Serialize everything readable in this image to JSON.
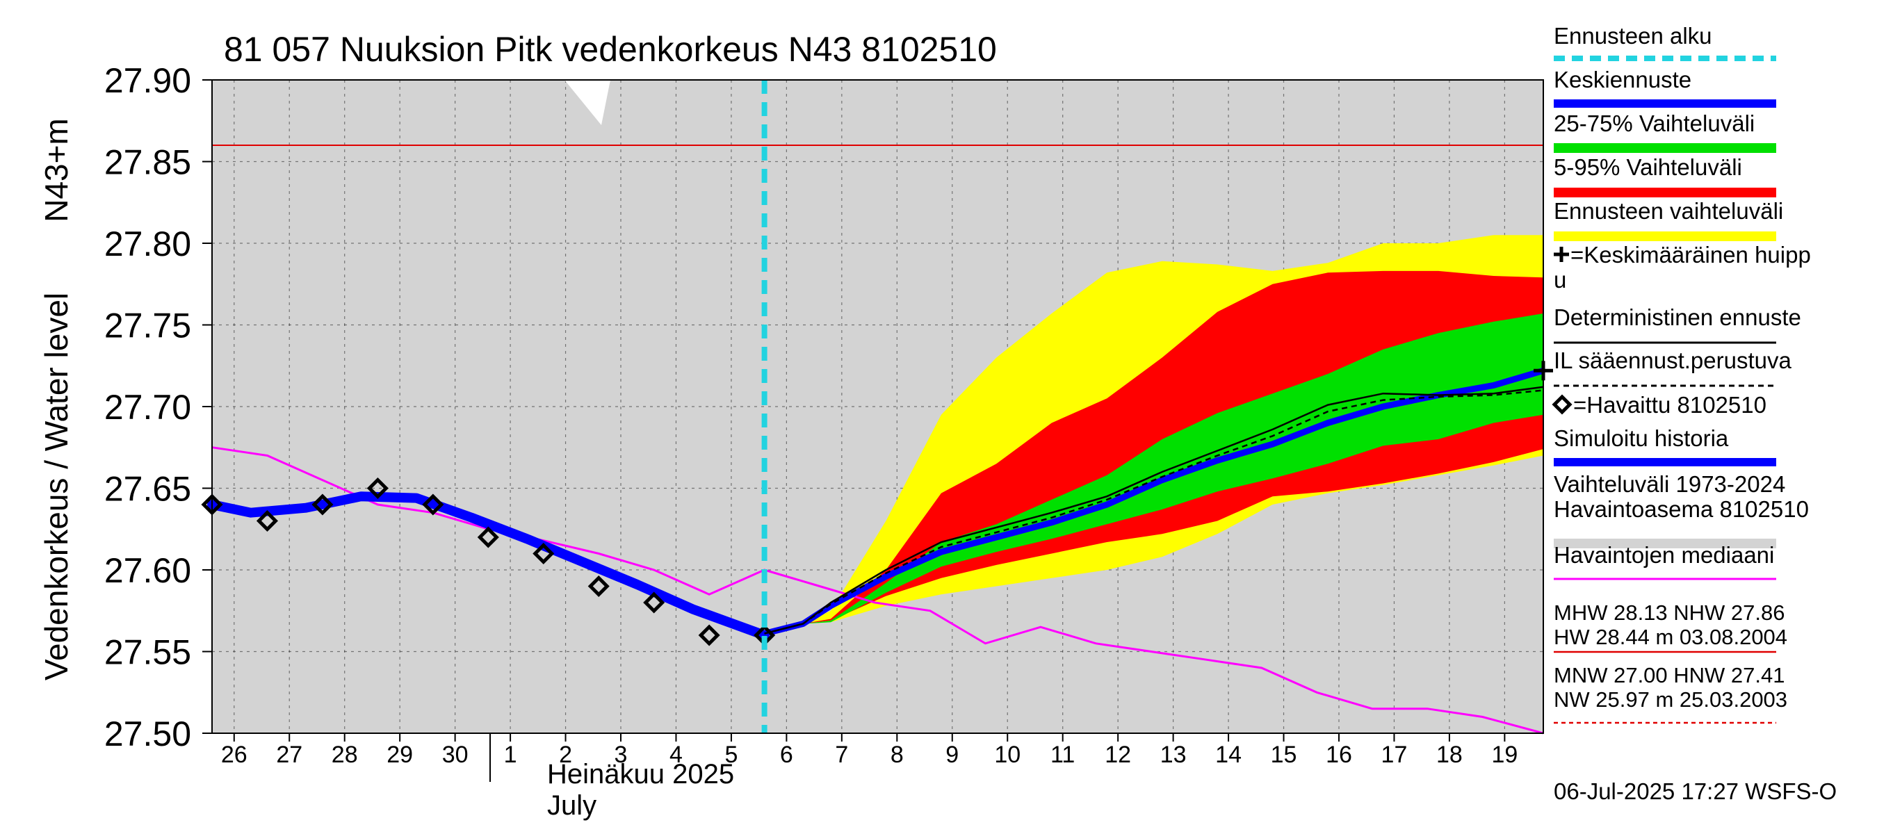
{
  "chart_data": {
    "type": "area",
    "title": "81 057 Nuuksion Pitk vedenkorkeus N43 8102510",
    "ylabel_left": "Vedenkorkeus / Water level",
    "ylabel_right": "N43+m",
    "ylim": [
      27.5,
      27.9
    ],
    "yticks": [
      "27.50",
      "27.55",
      "27.60",
      "27.65",
      "27.70",
      "27.75",
      "27.80",
      "27.85",
      "27.90"
    ],
    "xlim": [
      25.8,
      19.9
    ],
    "x_days": [
      26,
      27,
      28,
      29,
      30,
      1,
      2,
      3,
      4,
      5,
      6,
      7,
      8,
      9,
      10,
      11,
      12,
      13,
      14,
      15,
      16,
      17,
      18,
      19
    ],
    "x_tick_labels": [
      "26",
      "27",
      "28",
      "29",
      "30",
      "1",
      "2",
      "3",
      "4",
      "5",
      "6",
      "7",
      "8",
      "9",
      "10",
      "11",
      "12",
      "13",
      "14",
      "15",
      "16",
      "17",
      "18",
      "19"
    ],
    "month_label_fi": "Heinäkuu  2025",
    "month_label_en": "July",
    "forecast_start": 5.8,
    "hline_nhw": 27.86,
    "timestamp": "06-Jul-2025 17:27 WSFS-O",
    "colors": {
      "forecast_start": "#22d3e0",
      "mean_forecast": "#0000ff",
      "band_25_75": "#00e000",
      "band_5_95": "#ff0000",
      "band_forecast": "#ffff00",
      "history": "#d3d3d3",
      "median": "#ff00ff",
      "mhw": "#e00000",
      "simulated": "#0000ff",
      "deterministic": "#000000"
    },
    "band_yellow_upper": [
      [
        6.5,
        27.567
      ],
      [
        7,
        27.575
      ],
      [
        8,
        27.63
      ],
      [
        9,
        27.695
      ],
      [
        10,
        27.73
      ],
      [
        11,
        27.757
      ],
      [
        12,
        27.782
      ],
      [
        13,
        27.789
      ],
      [
        14,
        27.787
      ],
      [
        15,
        27.783
      ],
      [
        16,
        27.788
      ],
      [
        17,
        27.8
      ],
      [
        18,
        27.8
      ],
      [
        19,
        27.805
      ],
      [
        19.9,
        27.805
      ]
    ],
    "band_yellow_lower": [
      [
        6.5,
        27.567
      ],
      [
        7,
        27.568
      ],
      [
        8,
        27.578
      ],
      [
        9,
        27.585
      ],
      [
        10,
        27.59
      ],
      [
        11,
        27.595
      ],
      [
        12,
        27.6
      ],
      [
        13,
        27.608
      ],
      [
        14,
        27.622
      ],
      [
        15,
        27.64
      ],
      [
        16,
        27.647
      ],
      [
        17,
        27.652
      ],
      [
        18,
        27.658
      ],
      [
        19,
        27.664
      ],
      [
        19.9,
        27.67
      ]
    ],
    "band_red_upper": [
      [
        6.5,
        27.567
      ],
      [
        7,
        27.57
      ],
      [
        8,
        27.6
      ],
      [
        9,
        27.647
      ],
      [
        10,
        27.665
      ],
      [
        11,
        27.69
      ],
      [
        12,
        27.705
      ],
      [
        13,
        27.73
      ],
      [
        14,
        27.758
      ],
      [
        15,
        27.775
      ],
      [
        16,
        27.782
      ],
      [
        17,
        27.783
      ],
      [
        18,
        27.783
      ],
      [
        19,
        27.78
      ],
      [
        19.9,
        27.779
      ]
    ],
    "band_red_lower": [
      [
        6.5,
        27.567
      ],
      [
        7,
        27.569
      ],
      [
        8,
        27.584
      ],
      [
        9,
        27.595
      ],
      [
        10,
        27.603
      ],
      [
        11,
        27.61
      ],
      [
        12,
        27.617
      ],
      [
        13,
        27.622
      ],
      [
        14,
        27.63
      ],
      [
        15,
        27.645
      ],
      [
        16,
        27.648
      ],
      [
        17,
        27.653
      ],
      [
        18,
        27.659
      ],
      [
        19,
        27.666
      ],
      [
        19.9,
        27.674
      ]
    ],
    "band_green_upper": [
      [
        6.5,
        27.567
      ],
      [
        7,
        27.569
      ],
      [
        8,
        27.592
      ],
      [
        9,
        27.617
      ],
      [
        10,
        27.628
      ],
      [
        11,
        27.643
      ],
      [
        12,
        27.658
      ],
      [
        13,
        27.68
      ],
      [
        14,
        27.696
      ],
      [
        15,
        27.708
      ],
      [
        16,
        27.72
      ],
      [
        17,
        27.735
      ],
      [
        18,
        27.745
      ],
      [
        19,
        27.752
      ],
      [
        19.9,
        27.757
      ]
    ],
    "band_green_lower": [
      [
        6.5,
        27.567
      ],
      [
        7,
        27.568
      ],
      [
        8,
        27.586
      ],
      [
        9,
        27.602
      ],
      [
        10,
        27.611
      ],
      [
        11,
        27.619
      ],
      [
        12,
        27.628
      ],
      [
        13,
        27.637
      ],
      [
        14,
        27.648
      ],
      [
        15,
        27.656
      ],
      [
        16,
        27.665
      ],
      [
        17,
        27.676
      ],
      [
        18,
        27.68
      ],
      [
        19,
        27.69
      ],
      [
        19.9,
        27.695
      ]
    ],
    "series": [
      {
        "name": "Keskiennuste",
        "points": [
          [
            5.8,
            27.561
          ],
          [
            6.5,
            27.567
          ],
          [
            7,
            27.578
          ],
          [
            8,
            27.596
          ],
          [
            9,
            27.611
          ],
          [
            10,
            27.62
          ],
          [
            11,
            27.629
          ],
          [
            12,
            27.64
          ],
          [
            13,
            27.655
          ],
          [
            14,
            27.667
          ],
          [
            15,
            27.677
          ],
          [
            16,
            27.69
          ],
          [
            17,
            27.7
          ],
          [
            18,
            27.707
          ],
          [
            19,
            27.713
          ],
          [
            19.9,
            27.722
          ]
        ]
      },
      {
        "name": "Deterministinen ennuste",
        "points": [
          [
            5.8,
            27.561
          ],
          [
            6.5,
            27.567
          ],
          [
            7,
            27.58
          ],
          [
            8,
            27.6
          ],
          [
            9,
            27.617
          ],
          [
            10,
            27.626
          ],
          [
            11,
            27.635
          ],
          [
            12,
            27.645
          ],
          [
            13,
            27.66
          ],
          [
            14,
            27.673
          ],
          [
            15,
            27.686
          ],
          [
            16,
            27.701
          ],
          [
            17,
            27.708
          ],
          [
            18,
            27.707
          ],
          [
            19,
            27.708
          ],
          [
            19.9,
            27.712
          ]
        ]
      },
      {
        "name": "IL sääennust.perustuva",
        "points": [
          [
            5.8,
            27.561
          ],
          [
            6.5,
            27.567
          ],
          [
            7,
            27.579
          ],
          [
            8,
            27.598
          ],
          [
            9,
            27.614
          ],
          [
            10,
            27.623
          ],
          [
            11,
            27.632
          ],
          [
            12,
            27.643
          ],
          [
            13,
            27.657
          ],
          [
            14,
            27.67
          ],
          [
            15,
            27.682
          ],
          [
            16,
            27.697
          ],
          [
            17,
            27.704
          ],
          [
            18,
            27.706
          ],
          [
            19,
            27.707
          ],
          [
            19.9,
            27.71
          ]
        ]
      },
      {
        "name": "Simuloitu historia",
        "points": [
          [
            25.8,
            27.64
          ],
          [
            26.5,
            27.635
          ],
          [
            27.5,
            27.638
          ],
          [
            28.5,
            27.645
          ],
          [
            29.5,
            27.644
          ],
          [
            30.5,
            27.632
          ],
          [
            1.5,
            27.619
          ],
          [
            2.5,
            27.605
          ],
          [
            3.5,
            27.591
          ],
          [
            4.5,
            27.576
          ],
          [
            5.8,
            27.56
          ]
        ]
      },
      {
        "name": "Havaintojen mediaani",
        "points": [
          [
            25.8,
            27.675
          ],
          [
            26.8,
            27.67
          ],
          [
            27.8,
            27.655
          ],
          [
            28.8,
            27.64
          ],
          [
            29.8,
            27.635
          ],
          [
            30.8,
            27.625
          ],
          [
            1.8,
            27.618
          ],
          [
            2.8,
            27.61
          ],
          [
            3.8,
            27.6
          ],
          [
            4.8,
            27.585
          ],
          [
            5.8,
            27.6
          ],
          [
            6.8,
            27.59
          ],
          [
            7.8,
            27.58
          ],
          [
            8.8,
            27.575
          ],
          [
            9.8,
            27.555
          ],
          [
            10.8,
            27.565
          ],
          [
            11.8,
            27.555
          ],
          [
            12.8,
            27.55
          ],
          [
            13.8,
            27.545
          ],
          [
            14.8,
            27.54
          ],
          [
            15.8,
            27.525
          ],
          [
            16.8,
            27.515
          ],
          [
            17.8,
            27.515
          ],
          [
            18.8,
            27.51
          ],
          [
            19.9,
            27.5
          ]
        ]
      },
      {
        "name": "Havaittu 8102510",
        "points": [
          [
            25.8,
            27.64
          ],
          [
            26.8,
            27.63
          ],
          [
            27.8,
            27.64
          ],
          [
            28.8,
            27.65
          ],
          [
            29.8,
            27.64
          ],
          [
            30.8,
            27.62
          ],
          [
            1.8,
            27.61
          ],
          [
            2.8,
            27.59
          ],
          [
            3.8,
            27.58
          ],
          [
            4.8,
            27.56
          ],
          [
            5.8,
            27.56
          ]
        ]
      }
    ],
    "mean_peak": [
      19.9,
      27.722
    ],
    "legend": {
      "items": [
        {
          "text": "Ennusteen alku",
          "style": "dashed-cyan"
        },
        {
          "text": "Keskiennuste",
          "style": "thick-blue"
        },
        {
          "text": "25-75% Vaihteluväli",
          "style": "thick-green"
        },
        {
          "text": "5-95% Vaihteluväli",
          "style": "thick-red"
        },
        {
          "text": "Ennusteen vaihteluväli",
          "style": "thick-yellow"
        },
        {
          "text": "=Keskimääräinen huipp",
          "text2": "u",
          "style": "plus-mark"
        },
        {
          "text": "Deterministinen ennuste",
          "style": "thin-black"
        },
        {
          "text": "IL sääennust.perustuva",
          "style": "dashed-black"
        },
        {
          "text": "=Havaittu 8102510",
          "style": "diamond-mark"
        },
        {
          "text": "Simuloitu historia",
          "style": "thick-blue"
        },
        {
          "text": "Vaihteluväli 1973-2024",
          "text2": " Havaintoasema 8102510",
          "style": "thick-grey"
        },
        {
          "text": "Havaintojen mediaani",
          "style": "thin-magenta"
        }
      ],
      "mhw_line1": "MHW  28.13 NHW  27.86",
      "mhw_line2": "HW  28.44 m 03.08.2004",
      "mnw_line1": "MNW  27.00 HNW  27.41",
      "mnw_line2": "NW  25.97 m 25.03.2003"
    }
  }
}
